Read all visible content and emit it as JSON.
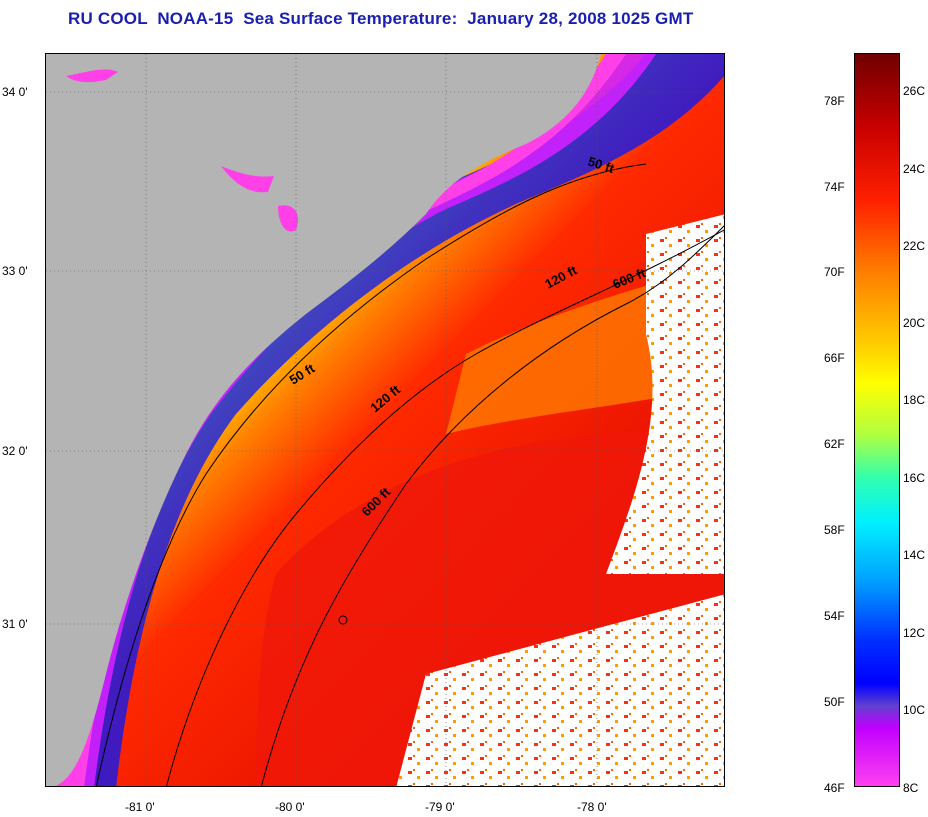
{
  "title": "RU COOL  NOAA-15  Sea Surface Temperature:  January 28, 2008 1025 GMT",
  "map": {
    "latitude_labels": [
      "34 0'",
      "33 0'",
      "32 0'",
      "31 0'"
    ],
    "longitude_labels": [
      "-81 0'",
      "-80 0'",
      "-79 0'",
      "-78 0'"
    ],
    "depth_contour_labels": [
      "50 ft",
      "120 ft",
      "600 ft",
      "50 ft",
      "120 ft",
      "600 ft"
    ],
    "colors": {
      "land": "#b4b4b4",
      "cloud": "#ffffff",
      "title": "#1a1fb0"
    }
  },
  "colorbar": {
    "fahrenheit_labels": [
      "78F",
      "74F",
      "70F",
      "66F",
      "62F",
      "58F",
      "54F",
      "50F",
      "46F"
    ],
    "celsius_labels": [
      "26C",
      "24C",
      "22C",
      "20C",
      "18C",
      "16C",
      "14C",
      "12C",
      "10C",
      "8C"
    ]
  }
}
